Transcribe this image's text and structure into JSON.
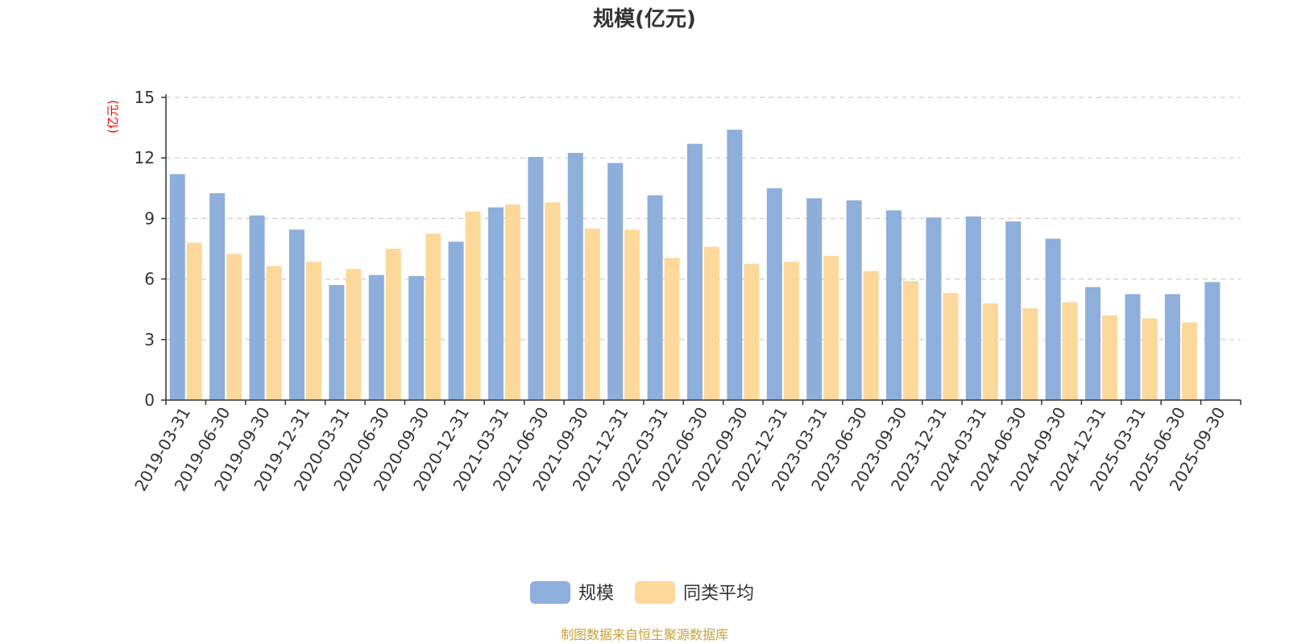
{
  "chart_data": {
    "type": "bar",
    "title": "规模(亿元)",
    "ylabel": "(亿元)",
    "ylim": [
      0,
      15
    ],
    "yticks": [
      0,
      3,
      6,
      9,
      12,
      15
    ],
    "grid": true,
    "legend_position": "bottom-center",
    "categories": [
      "2019-03-31",
      "2019-06-30",
      "2019-09-30",
      "2019-12-31",
      "2020-03-31",
      "2020-06-30",
      "2020-09-30",
      "2020-12-31",
      "2021-03-31",
      "2021-06-30",
      "2021-09-30",
      "2021-12-31",
      "2022-03-31",
      "2022-06-30",
      "2022-09-30",
      "2022-12-31",
      "2023-03-31",
      "2023-06-30",
      "2023-09-30",
      "2023-12-31",
      "2024-03-31",
      "2024-06-30",
      "2024-09-30",
      "2024-12-31",
      "2025-03-31",
      "2025-06-30",
      "2025-09-30"
    ],
    "series": [
      {
        "name": "规模",
        "color": "#8eaedb",
        "values": [
          11.2,
          10.25,
          9.15,
          8.45,
          5.7,
          6.2,
          6.15,
          7.85,
          9.55,
          12.05,
          12.25,
          11.75,
          10.15,
          12.7,
          13.4,
          10.5,
          10.0,
          9.9,
          9.4,
          9.05,
          9.1,
          8.85,
          8.0,
          5.6,
          5.25,
          5.25,
          5.85
        ]
      },
      {
        "name": "同类平均",
        "color": "#fdd89b",
        "values": [
          7.8,
          7.25,
          6.65,
          6.85,
          6.5,
          7.5,
          8.25,
          9.35,
          9.7,
          9.8,
          8.5,
          8.45,
          7.05,
          7.6,
          6.75,
          6.85,
          7.15,
          6.4,
          5.9,
          5.3,
          4.8,
          4.55,
          4.85,
          4.2,
          4.05,
          3.85,
          null
        ]
      }
    ]
  },
  "source_text": "制图数据来自恒生聚源数据库",
  "colors": {
    "axis": "#333333",
    "grid": "#cccccc",
    "unit_label": "#ff0000",
    "source_text": "#c9a13a"
  }
}
